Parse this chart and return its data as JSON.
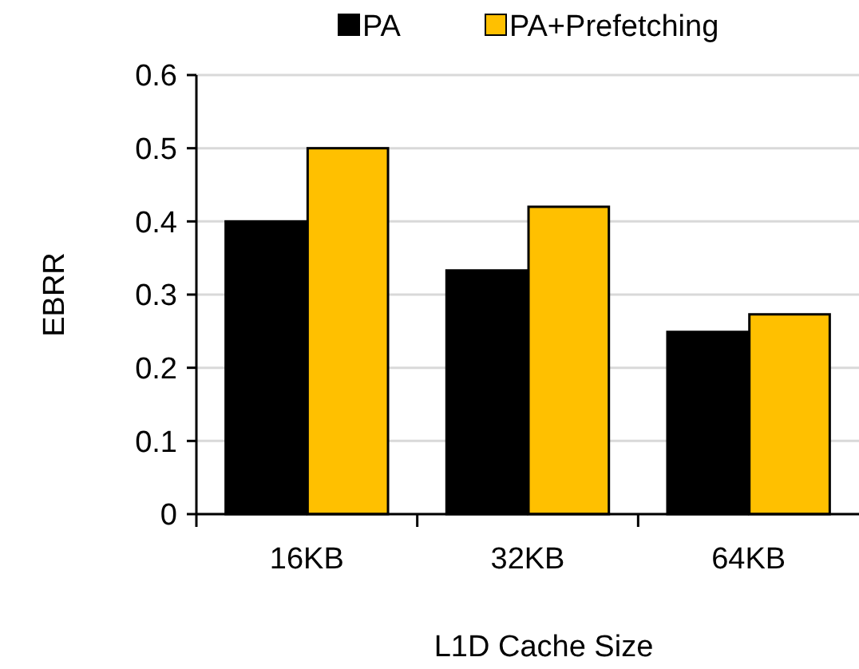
{
  "chart_data": {
    "type": "bar",
    "xlabel": "L1D Cache Size",
    "ylabel": "EBRR",
    "categories": [
      "16KB",
      "32KB",
      "64KB"
    ],
    "series": [
      {
        "name": "PA",
        "color": "#000000",
        "values": [
          0.4,
          0.333,
          0.249
        ]
      },
      {
        "name": "PA+Prefetching",
        "color": "#ffc000",
        "values": [
          0.5,
          0.42,
          0.273
        ]
      }
    ],
    "ylim": [
      0,
      0.6
    ],
    "yticks": [
      {
        "value": 0,
        "label": "0"
      },
      0.1,
      0.2,
      0.3,
      0.4,
      0.5,
      0.6
    ],
    "grid": "y",
    "legend": "top"
  }
}
